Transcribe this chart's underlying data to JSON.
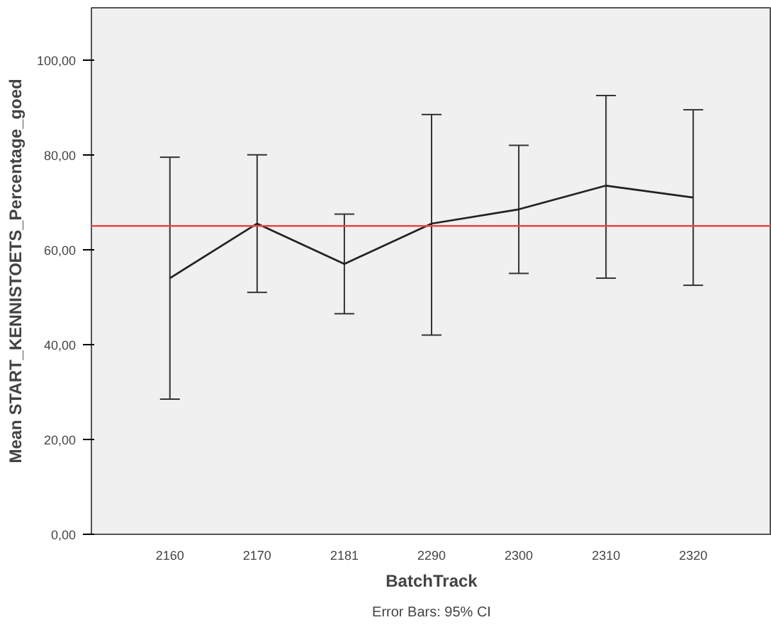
{
  "chart_data": {
    "type": "line",
    "categories": [
      "2160",
      "2170",
      "2181",
      "2290",
      "2300",
      "2310",
      "2320"
    ],
    "series": [
      {
        "color": "#222222",
        "values": [
          54,
          65.5,
          57,
          65.5,
          68.5,
          73.5,
          71
        ],
        "errors": [
          [
            28.5,
            79.5
          ],
          [
            51,
            80
          ],
          [
            46.5,
            67.5
          ],
          [
            42,
            88.5
          ],
          [
            55,
            82
          ],
          [
            54,
            92.5
          ],
          [
            52.5,
            89.5
          ]
        ]
      }
    ],
    "ylim": [
      0,
      111
    ],
    "yticks": [
      {
        "value": 0,
        "label": "0,00"
      },
      {
        "value": 20,
        "label": "20,00"
      },
      {
        "value": 40,
        "label": "40,00"
      },
      {
        "value": 60,
        "label": "60,00"
      },
      {
        "value": 80,
        "label": "80,00"
      },
      {
        "value": 100,
        "label": "100,00"
      }
    ],
    "xlabel": "BatchTrack",
    "ylabel": "Mean START_KENNISTOETS_Percentage_goed",
    "ref_lines": [
      {
        "axis": "y",
        "value": 65,
        "color": "#e8474a"
      }
    ],
    "annotations": [
      "Error Bars: 95% CI"
    ],
    "grid": false,
    "marker": "none",
    "line_style": "solid"
  }
}
